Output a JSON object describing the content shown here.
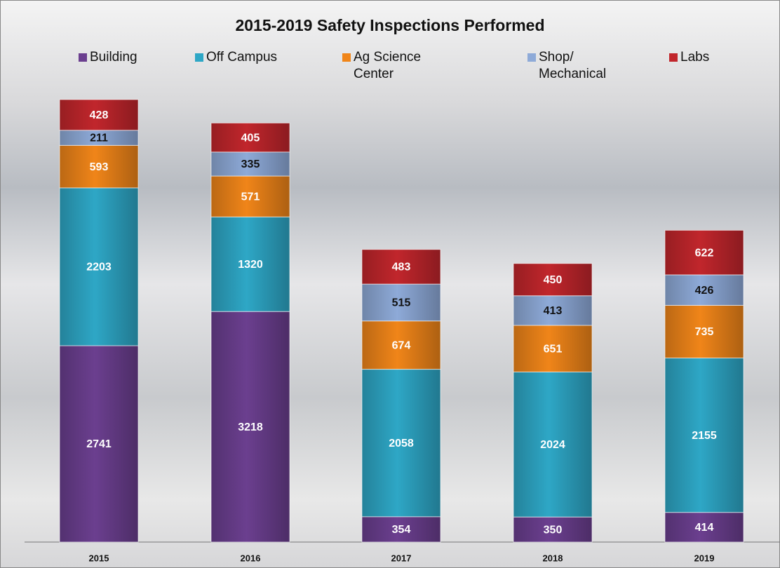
{
  "chart_data": {
    "type": "bar",
    "stacked": true,
    "title": "2015-2019 Safety Inspections Performed",
    "categories": [
      "2015",
      "2016",
      "2017",
      "2018",
      "2019"
    ],
    "series": [
      {
        "name": "Building",
        "color": "#6b3f8f",
        "values": [
          2741,
          3218,
          354,
          350,
          414
        ]
      },
      {
        "name": "Off Campus",
        "color": "#2ea7c6",
        "values": [
          2203,
          1320,
          2058,
          2024,
          2155
        ]
      },
      {
        "name": "Ag Science Center",
        "color": "#f08519",
        "values": [
          593,
          571,
          674,
          651,
          735
        ]
      },
      {
        "name": "Shop/ Mechanical",
        "color": "#8eaad8",
        "values": [
          211,
          335,
          515,
          413,
          426
        ]
      },
      {
        "name": "Labs",
        "color": "#c1262c",
        "values": [
          428,
          405,
          483,
          450,
          622
        ]
      }
    ],
    "legend": "top"
  }
}
